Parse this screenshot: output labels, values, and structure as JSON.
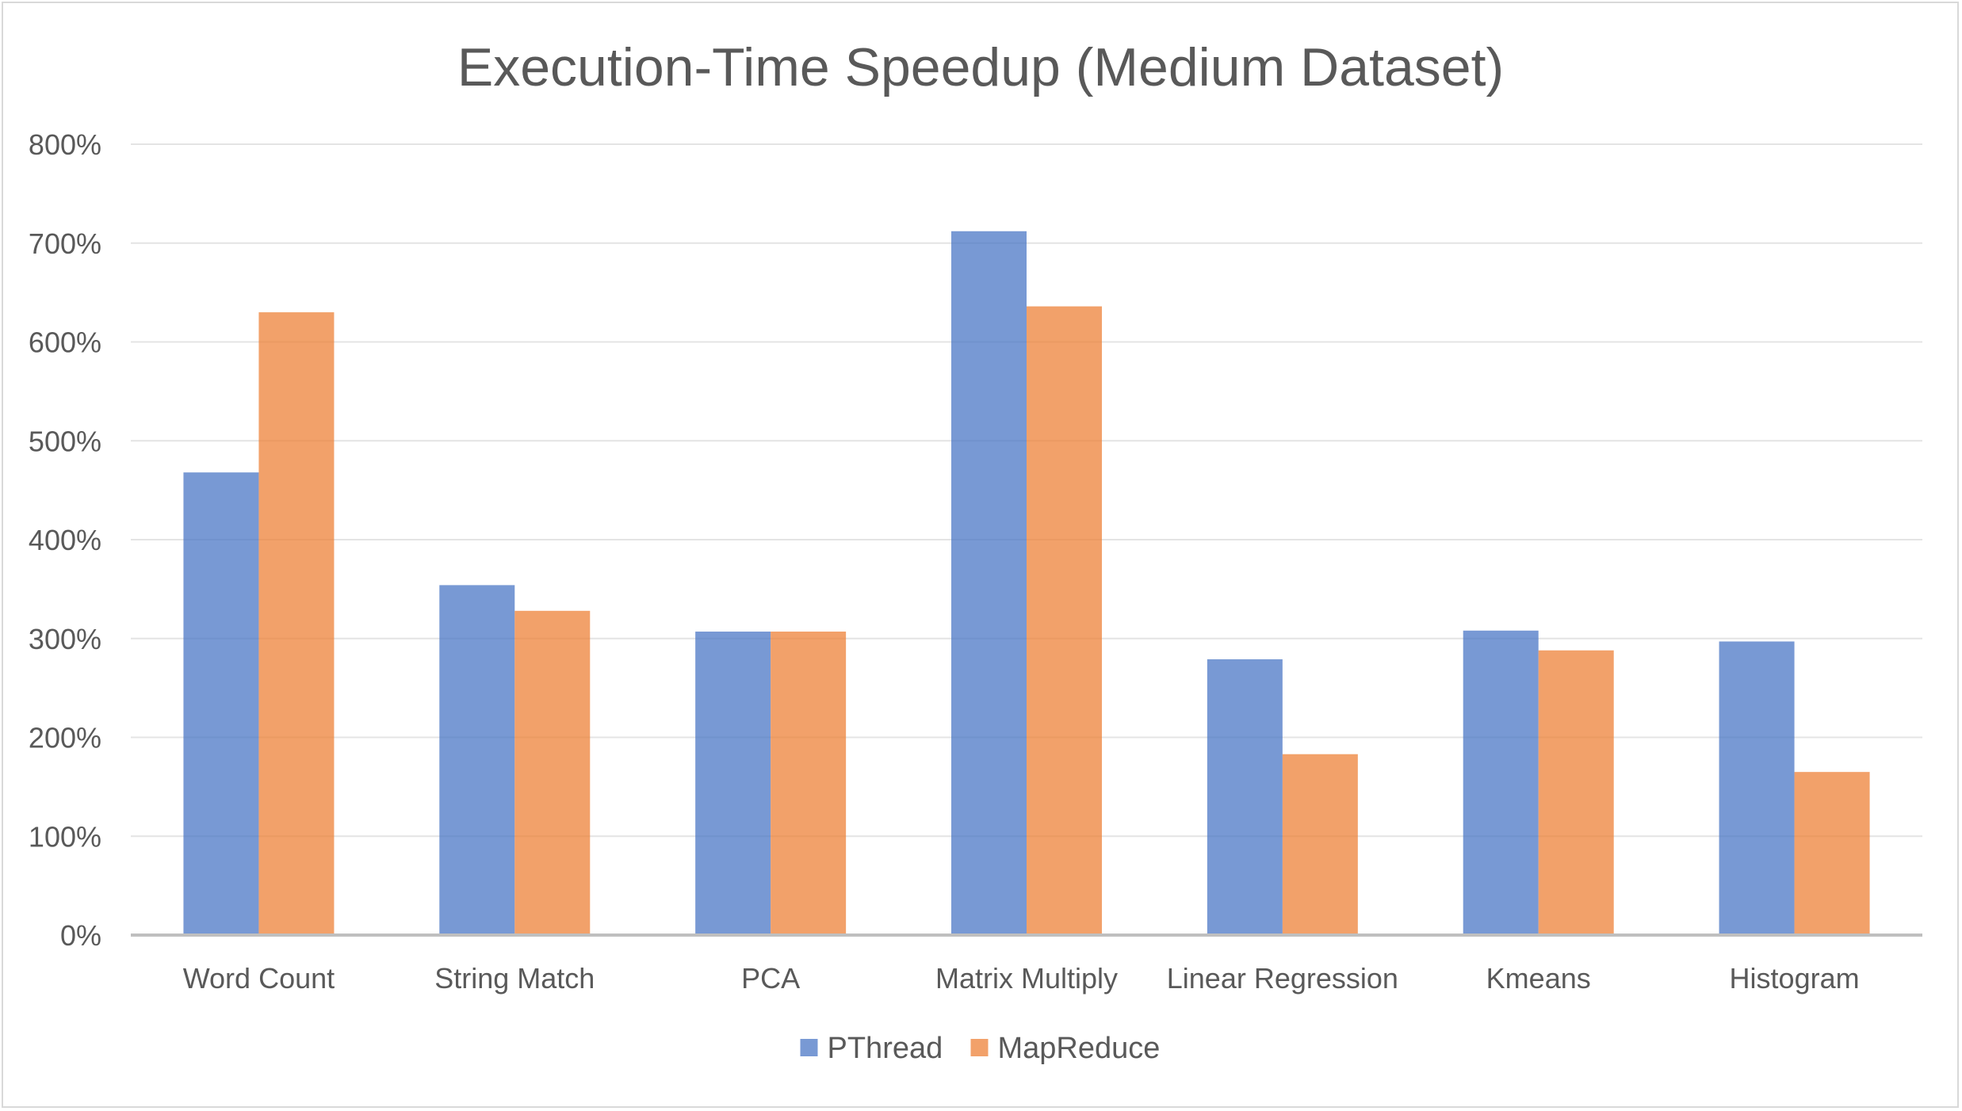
{
  "chart_data": {
    "type": "bar",
    "title": "Execution-Time Speedup (Medium Dataset)",
    "xlabel": "",
    "ylabel": "",
    "categories": [
      "Word Count",
      "String Match",
      "PCA",
      "Matrix Multiply",
      "Linear Regression",
      "Kmeans",
      "Histogram"
    ],
    "series": [
      {
        "name": "PThread",
        "color": "#4472C4",
        "values": [
          468,
          354,
          307,
          712,
          279,
          308,
          297
        ]
      },
      {
        "name": "MapReduce",
        "color": "#ED7D31",
        "values": [
          630,
          328,
          307,
          636,
          183,
          288,
          165
        ]
      }
    ],
    "ylim": [
      0,
      800
    ],
    "yticks": [
      0,
      100,
      200,
      300,
      400,
      500,
      600,
      700,
      800
    ],
    "ytick_format": "percent",
    "grid": true,
    "legend_position": "bottom",
    "bar_overlap": true
  }
}
